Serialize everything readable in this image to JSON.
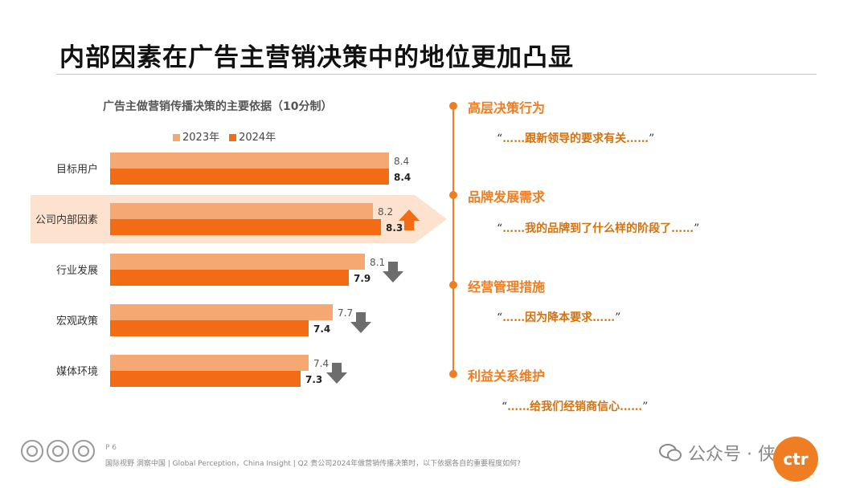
{
  "page": {
    "title": "内部因素在广告主营销决策中的地位更加凸显",
    "page_number": "P 6",
    "source_note": "国际视野 洞察中国 | Global Perception，China Insight | Q2 贵公司2024年做营销传播决策时，以下依据各自的重要程度如何?",
    "watermark_text": "公众号 · 侠说",
    "logo_text": "ctr"
  },
  "chart_data": {
    "type": "bar",
    "orientation": "horizontal",
    "title": "广告主做营销传播决策的主要依据（10分制）",
    "categories": [
      "目标用户",
      "公司内部因素",
      "行业发展",
      "宏观政策",
      "媒体环境"
    ],
    "series": [
      {
        "name": "2023年",
        "color": "#f5a872",
        "values": [
          8.4,
          8.2,
          8.1,
          7.7,
          7.4
        ]
      },
      {
        "name": "2024年",
        "color": "#f36c15",
        "values": [
          8.4,
          8.3,
          7.9,
          7.4,
          7.3
        ]
      }
    ],
    "trend": [
      "none",
      "up",
      "down",
      "down",
      "down"
    ],
    "highlight_category": "公司内部因素",
    "legend_position": "top",
    "grid": false,
    "colors": {
      "up": "#f36c15",
      "down": "#6d6d6d",
      "highlight": "#fde3cf"
    }
  },
  "insights": [
    {
      "heading": "高层决策行为",
      "quote": "……跟新领导的要求有关……"
    },
    {
      "heading": "品牌发展需求",
      "quote": "……我的品牌到了什么样的阶段了……"
    },
    {
      "heading": "经营管理措施",
      "quote": "……因为降本要求……"
    },
    {
      "heading": "利益关系维护",
      "quote": "……给我们经销商信心……"
    }
  ],
  "icons": [
    "arrow-up-icon",
    "arrow-down-icon",
    "sgs-seal-icon",
    "wechat-icon"
  ]
}
